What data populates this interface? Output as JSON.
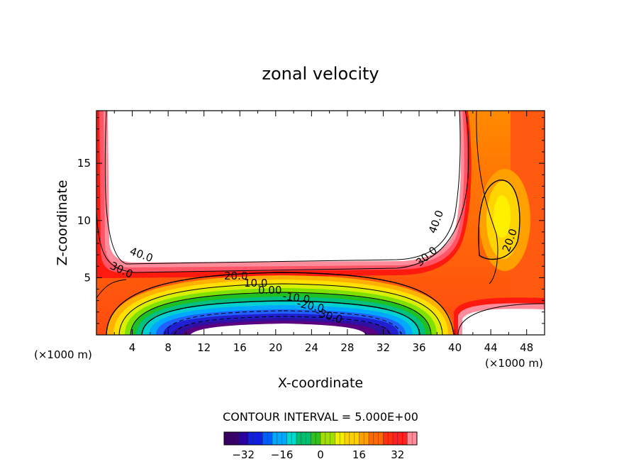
{
  "chart_data": {
    "type": "heatmap",
    "title": "zonal velocity",
    "xlabel": "X-coordinate",
    "ylabel": "Z-coordinate",
    "x_unit_left": "(×1000 m)",
    "x_unit_right": "(×1000 m)",
    "xlim": [
      0,
      50
    ],
    "ylim": [
      0,
      19.6
    ],
    "x_ticks": [
      4,
      8,
      12,
      16,
      20,
      24,
      28,
      32,
      36,
      40,
      44,
      48
    ],
    "x_tick_labels": [
      "4",
      "8",
      "12",
      "16",
      "20",
      "24",
      "28",
      "32",
      "36",
      "40",
      "44",
      "48"
    ],
    "y_ticks": [
      5,
      10,
      15
    ],
    "y_tick_labels": [
      "5",
      "10",
      "15"
    ],
    "contour_interval_text": "CONTOUR INTERVAL = 5.000E+00",
    "colorbar": {
      "min": -40,
      "max": 40,
      "ticks": [
        -32,
        -16,
        0,
        16,
        32
      ],
      "tick_labels": [
        "−32",
        "−16",
        "0",
        "16",
        "32"
      ]
    },
    "contour_labels": [
      {
        "text": "40.0",
        "x": 4.5,
        "y": 7.4
      },
      {
        "text": "30.0",
        "x": 2.3,
        "y": 6.1
      },
      {
        "text": "40.0",
        "x": 38.0,
        "y": 10.0
      },
      {
        "text": "30.0",
        "x": 37.2,
        "y": 6.9
      },
      {
        "text": "20.0",
        "x": 46.2,
        "y": 8.6
      },
      {
        "text": "20.0",
        "x": 16.0,
        "y": 5.1
      },
      {
        "text": "10.0",
        "x": 18.0,
        "y": 4.5
      },
      {
        "text": "0.00",
        "x": 19.5,
        "y": 4.0
      },
      {
        "text": "-10.0",
        "x": 22.5,
        "y": 3.4
      },
      {
        "text": "-20.0",
        "x": 24.5,
        "y": 2.8
      },
      {
        "text": "-30.0",
        "x": 26.3,
        "y": 2.0
      }
    ],
    "features": [
      {
        "name": "upper jet core (white, above 45)",
        "x_range": [
          1.2,
          40.5
        ],
        "z_range": [
          7.5,
          19.6
        ]
      },
      {
        "name": "lower-right core (white, above 45)",
        "x_range": [
          40.5,
          50
        ],
        "z_range": [
          0,
          1.9
        ]
      },
      {
        "name": "negative core (about -40)",
        "x_range": [
          8,
          32
        ],
        "z_range": [
          0,
          1.9
        ]
      },
      {
        "name": "secondary maximum (about 20)",
        "x_range": [
          42.5,
          47.5
        ],
        "z_range": [
          7,
          13.5
        ]
      }
    ]
  }
}
